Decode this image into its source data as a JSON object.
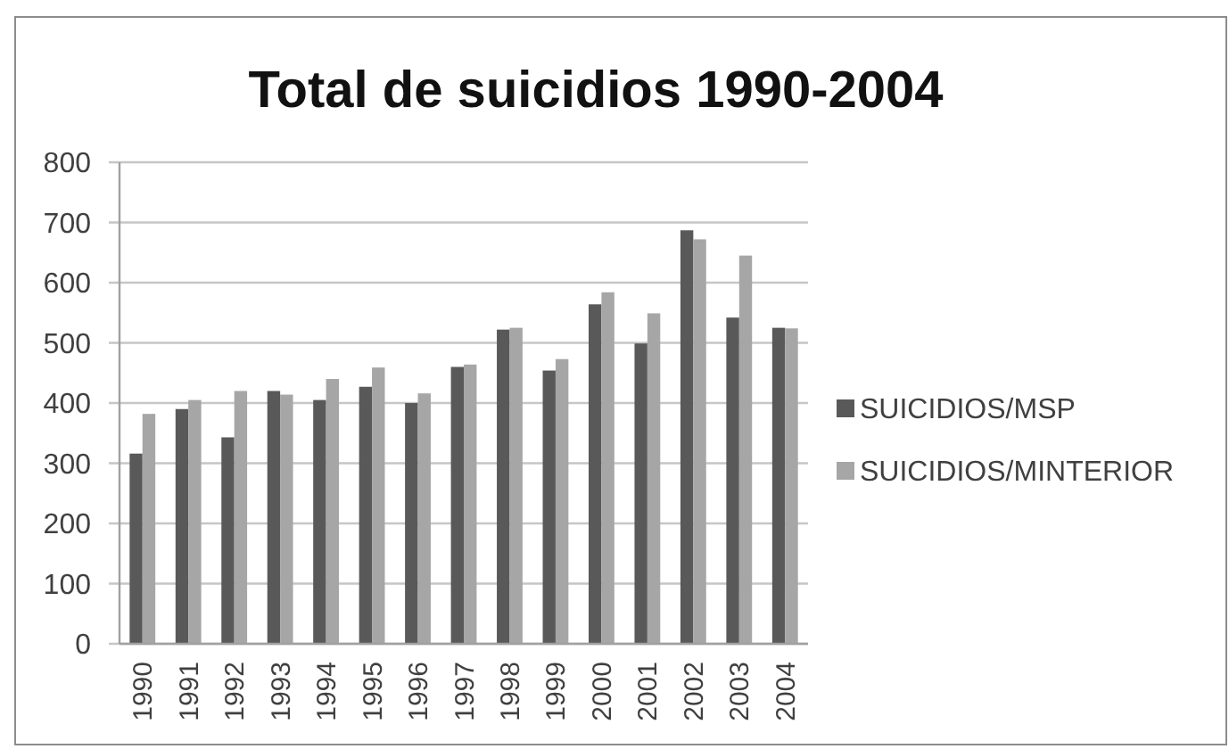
{
  "chart_data": {
    "type": "bar",
    "title": "Total de suicidios 1990-2004",
    "categories": [
      "1990",
      "1991",
      "1992",
      "1993",
      "1994",
      "1995",
      "1996",
      "1997",
      "1998",
      "1999",
      "2000",
      "2001",
      "2002",
      "2003",
      "2004"
    ],
    "series": [
      {
        "name": "SUICIDIOS/MSP",
        "color": "#595959",
        "values": [
          316,
          390,
          343,
          420,
          405,
          427,
          400,
          460,
          522,
          454,
          564,
          499,
          687,
          542,
          525
        ]
      },
      {
        "name": "SUICIDIOS/MINTERIOR",
        "color": "#a6a6a6",
        "values": [
          382,
          405,
          420,
          414,
          440,
          459,
          416,
          464,
          525,
          473,
          584,
          549,
          672,
          645,
          524
        ]
      }
    ],
    "ylim": [
      0,
      800
    ],
    "yticks": [
      0,
      100,
      200,
      300,
      400,
      500,
      600,
      700,
      800
    ],
    "grid": "y",
    "legend": "right"
  }
}
